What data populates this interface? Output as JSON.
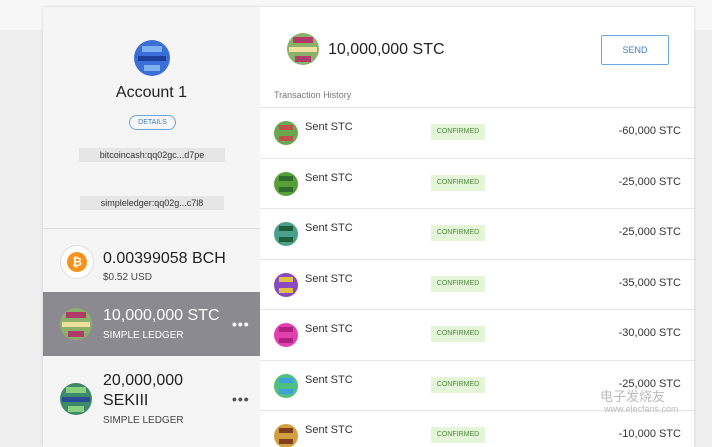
{
  "account": {
    "name": "Account 1",
    "details_button": "DETAILS",
    "addresses": [
      "bitcoincash:qq02gc...d7pe",
      "simpleledger:qq02g...c7l8"
    ]
  },
  "tokens": [
    {
      "amount": "0.00399058 BCH",
      "subtitle": "$0.52 USD"
    },
    {
      "amount": "10,000,000 STC",
      "subtitle": "SIMPLE LEDGER",
      "menu": "•••"
    },
    {
      "amount": "20,000,000 SEKIII",
      "subtitle": "SIMPLE LEDGER",
      "menu": "•••"
    }
  ],
  "main": {
    "balance": "10,000,000 STC",
    "send_button": "SEND",
    "history_title": "Transaction History",
    "transactions": [
      {
        "label": "Sent STC",
        "status": "CONFIRMED",
        "amount": "-60,000 STC"
      },
      {
        "label": "Sent STC",
        "status": "CONFIRMED",
        "amount": "-25,000 STC"
      },
      {
        "label": "Sent STC",
        "status": "CONFIRMED",
        "amount": "-25,000 STC"
      },
      {
        "label": "Sent STC",
        "status": "CONFIRMED",
        "amount": "-35,000 STC"
      },
      {
        "label": "Sent STC",
        "status": "CONFIRMED",
        "amount": "-30,000 STC"
      },
      {
        "label": "Sent STC",
        "status": "CONFIRMED",
        "amount": "-25,000 STC"
      },
      {
        "label": "Sent STC",
        "status": "CONFIRMED",
        "amount": "-10,000 STC"
      }
    ]
  },
  "watermark": {
    "brand": "电子发烧友",
    "url": "www.elecfans.com"
  }
}
